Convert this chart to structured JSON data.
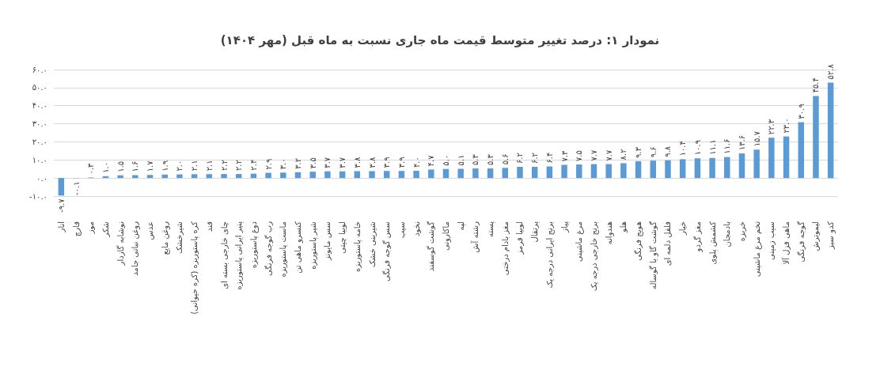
{
  "chart_data": {
    "type": "bar",
    "title": "نمودار ۱: درصد تغییر متوسط قیمت ماه جاری نسبت به ماه قبل (مهر ۱۴۰۴)",
    "categories": [
      "انار",
      "قارچ",
      "موز",
      "شکر",
      "نوشابه گازدار",
      "روغن نباتی جامد",
      "عدس",
      "روغن مایع",
      "شیرخشک",
      "کره پاستوریزه (کره حیوانی)",
      "قند",
      "چای خارجی بسته ای",
      "پنیر ایرانی پاستوریزه",
      "دوغ پاستوریزه",
      "رب گوجه فرنگی",
      "ماست پاستوریزه",
      "کنسرو ماهی تن",
      "شیر پاستوریزه",
      "سس مایونز",
      "لوبیا چیتی",
      "خامه پاستوریزه",
      "شیرینی خشک",
      "سس گوجه فرنگی",
      "سیب",
      "نخود",
      "گوشت گوسفند",
      "ماکارونی",
      "لپه",
      "رشته آش",
      "پسته",
      "مغز بادام درختی",
      "لوبیا قرمز",
      "پرتقال",
      "برنج ایرانی درجه یک",
      "پیاز",
      "مرغ ماشینی",
      "برنج خارجی درجه یک",
      "هندوانه",
      "هلو",
      "هویج فرنگی",
      "گوشت گاو یا گوساله",
      "فلفل دلمه ای",
      "خیار",
      "مغز گردو",
      "کشمش پلوی",
      "بادمجان",
      "خربزه",
      "تخم مرغ ماشینی",
      "سیب زمینی",
      "ماهی قزل آلا",
      "گوجه فرنگی",
      "لیموترش",
      "کدو سبز"
    ],
    "values": [
      -9.7,
      -0.1,
      0.3,
      1.0,
      1.5,
      1.6,
      1.7,
      1.9,
      2.0,
      2.1,
      2.1,
      2.2,
      2.2,
      2.4,
      2.9,
      3.0,
      3.2,
      3.5,
      3.7,
      3.7,
      3.8,
      3.8,
      3.9,
      3.9,
      4.0,
      4.7,
      5.0,
      5.1,
      5.3,
      5.3,
      5.6,
      6.2,
      6.2,
      6.4,
      7.3,
      7.5,
      7.7,
      7.7,
      8.2,
      9.3,
      9.6,
      9.8,
      10.4,
      10.9,
      11.1,
      11.6,
      13.6,
      15.7,
      22.3,
      23.0,
      30.9,
      45.4,
      52.8
    ],
    "value_labels": [
      "-۹.۷",
      "-۰.۱",
      "۰.۳",
      "۱.۰",
      "۱.۵",
      "۱.۶",
      "۱.۷",
      "۱.۹",
      "۲.۰",
      "۲.۱",
      "۲.۱",
      "۲.۲",
      "۲.۲",
      "۲.۴",
      "۲.۹",
      "۳.۰",
      "۳.۲",
      "۳.۵",
      "۳.۷",
      "۳.۷",
      "۳.۸",
      "۳.۸",
      "۳.۹",
      "۳.۹",
      "۴.۰",
      "۴.۷",
      "۵.۰",
      "۵.۱",
      "۵.۳",
      "۵.۳",
      "۵.۶",
      "۶.۲",
      "۶.۲",
      "۶.۴",
      "۷.۳",
      "۷.۵",
      "۷.۷",
      "۷.۷",
      "۸.۲",
      "۹.۳",
      "۹.۶",
      "۹.۸",
      "۱۰.۴",
      "۱۰.۹",
      "۱۱.۱",
      "۱۱.۶",
      "۱۳.۶",
      "۱۵.۷",
      "۲۲.۳",
      "۲۳.۰",
      "۳۰.۹",
      "۴۵.۴",
      "۵۲.۸"
    ],
    "color": "#5b9bd5",
    "ylim": [
      -10,
      60
    ],
    "yticks": [
      {
        "value": -10,
        "label": "-۱۰.۰"
      },
      {
        "value": 0,
        "label": "۰.۰"
      },
      {
        "value": 10,
        "label": "۱۰.۰"
      },
      {
        "value": 20,
        "label": "۲۰.۰"
      },
      {
        "value": 30,
        "label": "۳۰.۰"
      },
      {
        "value": 40,
        "label": "۴۰.۰"
      },
      {
        "value": 50,
        "label": "۵۰.۰"
      },
      {
        "value": 60,
        "label": "۶۰.۰"
      }
    ],
    "grid": "y"
  }
}
